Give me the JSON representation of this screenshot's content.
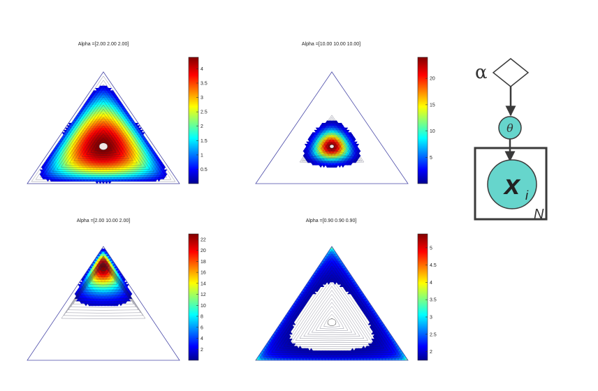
{
  "chart_data": [
    {
      "type": "contour",
      "title": "Alpha =[2.00 2.00 2.00]",
      "alpha": [
        2.0,
        2.0,
        2.0
      ],
      "colorbar": {
        "ticks": [
          0.5,
          1,
          1.5,
          2,
          2.5,
          3,
          3.5,
          4
        ],
        "tick_labels": [
          "0.5",
          "1",
          "1.5",
          "2",
          "2.5",
          "3",
          "3.5",
          "4"
        ],
        "range": [
          0,
          4.4
        ]
      },
      "fill_threshold": 0.4
    },
    {
      "type": "contour",
      "title": "Alpha =[10.00 10.00 10.00]",
      "alpha": [
        10.0,
        10.0,
        10.0
      ],
      "colorbar": {
        "ticks": [
          5,
          10,
          15,
          20
        ],
        "tick_labels": [
          "5",
          "10",
          "15",
          "20"
        ],
        "range": [
          0,
          24
        ]
      },
      "fill_threshold": 1.5
    },
    {
      "type": "contour",
      "title": "Alpha =[2.00 10.00 2.00]",
      "alpha": [
        2.0,
        10.0,
        2.0
      ],
      "colorbar": {
        "ticks": [
          2,
          4,
          6,
          8,
          10,
          12,
          14,
          16,
          18,
          20,
          22
        ],
        "tick_labels": [
          "2",
          "4",
          "6",
          "8",
          "10",
          "12",
          "14",
          "16",
          "18",
          "20",
          "22"
        ],
        "range": [
          0,
          23
        ]
      },
      "fill_threshold": 1.5
    },
    {
      "type": "contour",
      "title": "Alpha =[0.90 0.90 0.90]",
      "alpha": [
        0.9,
        0.9,
        0.9
      ],
      "colorbar": {
        "ticks": [
          2,
          2.5,
          3,
          3.5,
          4,
          4.5,
          5
        ],
        "tick_labels": [
          "2",
          "2.5",
          "3",
          "3.5",
          "4",
          "4.5",
          "5"
        ],
        "range": [
          1.75,
          5.4
        ]
      },
      "fill_threshold": 1.9
    }
  ],
  "diagram": {
    "alpha_label": "α",
    "theta_label": "θ",
    "x_label": "x",
    "x_subscript": "i",
    "plate_label": "N",
    "node_color": "#66d5cc"
  }
}
